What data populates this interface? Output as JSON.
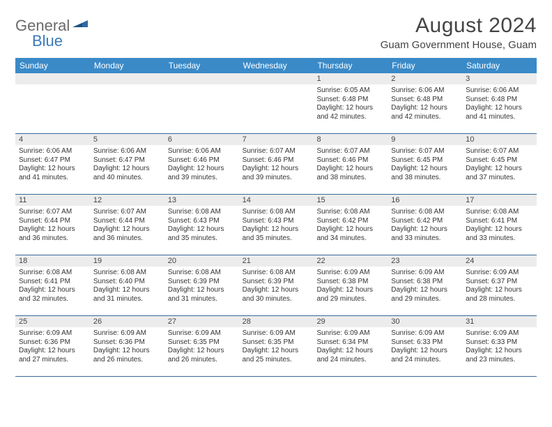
{
  "logo": {
    "part1": "General",
    "part2": "Blue"
  },
  "title": "August 2024",
  "location": "Guam Government House, Guam",
  "dow": [
    "Sunday",
    "Monday",
    "Tuesday",
    "Wednesday",
    "Thursday",
    "Friday",
    "Saturday"
  ],
  "colors": {
    "header_bg": "#3a8ac8",
    "daynum_bg": "#ececec",
    "week_border": "#3a6a99",
    "logo_gray": "#6a6a6a",
    "logo_blue": "#3a7ab8"
  },
  "weeks": [
    [
      {
        "n": "",
        "sr": "",
        "ss": "",
        "dl": ""
      },
      {
        "n": "",
        "sr": "",
        "ss": "",
        "dl": ""
      },
      {
        "n": "",
        "sr": "",
        "ss": "",
        "dl": ""
      },
      {
        "n": "",
        "sr": "",
        "ss": "",
        "dl": ""
      },
      {
        "n": "1",
        "sr": "Sunrise: 6:05 AM",
        "ss": "Sunset: 6:48 PM",
        "dl": "Daylight: 12 hours and 42 minutes."
      },
      {
        "n": "2",
        "sr": "Sunrise: 6:06 AM",
        "ss": "Sunset: 6:48 PM",
        "dl": "Daylight: 12 hours and 42 minutes."
      },
      {
        "n": "3",
        "sr": "Sunrise: 6:06 AM",
        "ss": "Sunset: 6:48 PM",
        "dl": "Daylight: 12 hours and 41 minutes."
      }
    ],
    [
      {
        "n": "4",
        "sr": "Sunrise: 6:06 AM",
        "ss": "Sunset: 6:47 PM",
        "dl": "Daylight: 12 hours and 41 minutes."
      },
      {
        "n": "5",
        "sr": "Sunrise: 6:06 AM",
        "ss": "Sunset: 6:47 PM",
        "dl": "Daylight: 12 hours and 40 minutes."
      },
      {
        "n": "6",
        "sr": "Sunrise: 6:06 AM",
        "ss": "Sunset: 6:46 PM",
        "dl": "Daylight: 12 hours and 39 minutes."
      },
      {
        "n": "7",
        "sr": "Sunrise: 6:07 AM",
        "ss": "Sunset: 6:46 PM",
        "dl": "Daylight: 12 hours and 39 minutes."
      },
      {
        "n": "8",
        "sr": "Sunrise: 6:07 AM",
        "ss": "Sunset: 6:46 PM",
        "dl": "Daylight: 12 hours and 38 minutes."
      },
      {
        "n": "9",
        "sr": "Sunrise: 6:07 AM",
        "ss": "Sunset: 6:45 PM",
        "dl": "Daylight: 12 hours and 38 minutes."
      },
      {
        "n": "10",
        "sr": "Sunrise: 6:07 AM",
        "ss": "Sunset: 6:45 PM",
        "dl": "Daylight: 12 hours and 37 minutes."
      }
    ],
    [
      {
        "n": "11",
        "sr": "Sunrise: 6:07 AM",
        "ss": "Sunset: 6:44 PM",
        "dl": "Daylight: 12 hours and 36 minutes."
      },
      {
        "n": "12",
        "sr": "Sunrise: 6:07 AM",
        "ss": "Sunset: 6:44 PM",
        "dl": "Daylight: 12 hours and 36 minutes."
      },
      {
        "n": "13",
        "sr": "Sunrise: 6:08 AM",
        "ss": "Sunset: 6:43 PM",
        "dl": "Daylight: 12 hours and 35 minutes."
      },
      {
        "n": "14",
        "sr": "Sunrise: 6:08 AM",
        "ss": "Sunset: 6:43 PM",
        "dl": "Daylight: 12 hours and 35 minutes."
      },
      {
        "n": "15",
        "sr": "Sunrise: 6:08 AM",
        "ss": "Sunset: 6:42 PM",
        "dl": "Daylight: 12 hours and 34 minutes."
      },
      {
        "n": "16",
        "sr": "Sunrise: 6:08 AM",
        "ss": "Sunset: 6:42 PM",
        "dl": "Daylight: 12 hours and 33 minutes."
      },
      {
        "n": "17",
        "sr": "Sunrise: 6:08 AM",
        "ss": "Sunset: 6:41 PM",
        "dl": "Daylight: 12 hours and 33 minutes."
      }
    ],
    [
      {
        "n": "18",
        "sr": "Sunrise: 6:08 AM",
        "ss": "Sunset: 6:41 PM",
        "dl": "Daylight: 12 hours and 32 minutes."
      },
      {
        "n": "19",
        "sr": "Sunrise: 6:08 AM",
        "ss": "Sunset: 6:40 PM",
        "dl": "Daylight: 12 hours and 31 minutes."
      },
      {
        "n": "20",
        "sr": "Sunrise: 6:08 AM",
        "ss": "Sunset: 6:39 PM",
        "dl": "Daylight: 12 hours and 31 minutes."
      },
      {
        "n": "21",
        "sr": "Sunrise: 6:08 AM",
        "ss": "Sunset: 6:39 PM",
        "dl": "Daylight: 12 hours and 30 minutes."
      },
      {
        "n": "22",
        "sr": "Sunrise: 6:09 AM",
        "ss": "Sunset: 6:38 PM",
        "dl": "Daylight: 12 hours and 29 minutes."
      },
      {
        "n": "23",
        "sr": "Sunrise: 6:09 AM",
        "ss": "Sunset: 6:38 PM",
        "dl": "Daylight: 12 hours and 29 minutes."
      },
      {
        "n": "24",
        "sr": "Sunrise: 6:09 AM",
        "ss": "Sunset: 6:37 PM",
        "dl": "Daylight: 12 hours and 28 minutes."
      }
    ],
    [
      {
        "n": "25",
        "sr": "Sunrise: 6:09 AM",
        "ss": "Sunset: 6:36 PM",
        "dl": "Daylight: 12 hours and 27 minutes."
      },
      {
        "n": "26",
        "sr": "Sunrise: 6:09 AM",
        "ss": "Sunset: 6:36 PM",
        "dl": "Daylight: 12 hours and 26 minutes."
      },
      {
        "n": "27",
        "sr": "Sunrise: 6:09 AM",
        "ss": "Sunset: 6:35 PM",
        "dl": "Daylight: 12 hours and 26 minutes."
      },
      {
        "n": "28",
        "sr": "Sunrise: 6:09 AM",
        "ss": "Sunset: 6:35 PM",
        "dl": "Daylight: 12 hours and 25 minutes."
      },
      {
        "n": "29",
        "sr": "Sunrise: 6:09 AM",
        "ss": "Sunset: 6:34 PM",
        "dl": "Daylight: 12 hours and 24 minutes."
      },
      {
        "n": "30",
        "sr": "Sunrise: 6:09 AM",
        "ss": "Sunset: 6:33 PM",
        "dl": "Daylight: 12 hours and 24 minutes."
      },
      {
        "n": "31",
        "sr": "Sunrise: 6:09 AM",
        "ss": "Sunset: 6:33 PM",
        "dl": "Daylight: 12 hours and 23 minutes."
      }
    ]
  ]
}
